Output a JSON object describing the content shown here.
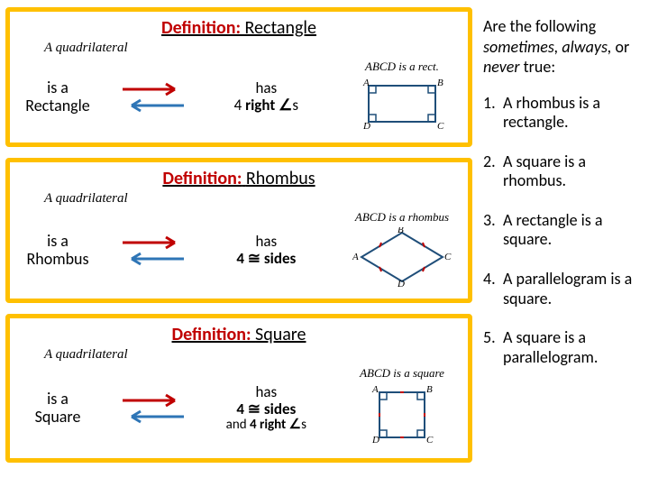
{
  "cards": [
    {
      "title_def": "Definition:",
      "title_shape": "Rectangle",
      "quad": "A quadrilateral",
      "isa_line1": "is a",
      "isa_line2": "Rectangle",
      "has_line1": "has",
      "has_line2_pre": "4 ",
      "has_bold": "right ∠",
      "has_line2_post": "s",
      "has_line3": "",
      "fig_caption_pre": "ABCD",
      "fig_caption_post": " is a rect.",
      "fig": "rect"
    },
    {
      "title_def": "Definition:",
      "title_shape": "Rhombus",
      "quad": "A quadrilateral",
      "isa_line1": "is a",
      "isa_line2": "Rhombus",
      "has_line1": "has",
      "has_line2_pre": "",
      "has_bold": "4 ≅ sides",
      "has_line2_post": "",
      "has_line3": "",
      "fig_caption_pre": "ABCD",
      "fig_caption_post": " is a",
      "fig_caption_extra": "rhombus",
      "fig": "rhom"
    },
    {
      "title_def": "Definition:",
      "title_shape": "Square",
      "quad": "A quadrilateral",
      "isa_line1": "is a",
      "isa_line2": "Square",
      "has_line1": "has",
      "has_line2_pre": "",
      "has_bold": "4 ≅ sides",
      "has_line2_post": "",
      "has_line3_pre": "and ",
      "has_line3_bold": "4 right ∠",
      "has_line3_post": "s",
      "fig_caption_pre": "ABCD",
      "fig_caption_post": " is a square",
      "fig": "sq"
    }
  ],
  "question_head": "Are the following <span class=\"em\">sometimes, always,</span> or <span class=\"em\">never</span> true:",
  "questions": [
    "A rhombus is a rectangle.",
    "A square is a rhombus.",
    "A rectangle is a square.",
    "A parallelogram is a square.",
    "A square is a parallelogram."
  ],
  "colors": {
    "card_border": "#ffc000",
    "def": "#c00000",
    "arrow_red": "#c00000",
    "arrow_blue": "#2e75b6",
    "fig_line": "#1f4e79",
    "tick": "#c00000"
  }
}
